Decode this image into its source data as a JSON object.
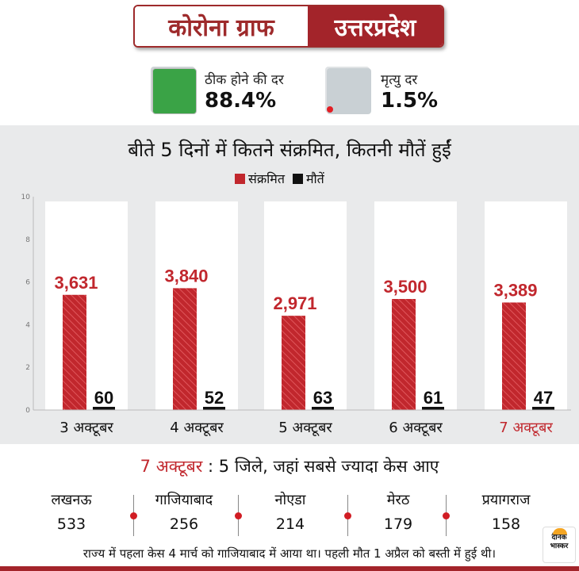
{
  "header": {
    "title_left": "कोरोना ग्राफ",
    "title_right": "उत्तरप्रदेश"
  },
  "stats": {
    "recovery": {
      "label": "ठीक होने की दर",
      "value": "88.4%",
      "color": "#3aa346"
    },
    "mortality": {
      "label": "मृत्यु दर",
      "value": "1.5%",
      "color": "#c9d0d4"
    }
  },
  "chart_data": {
    "type": "bar",
    "title": "बीते 5 दिनों में कितने संक्रमित, कितनी मौतें हुईं",
    "categories": [
      "3 अक्टूबर",
      "4 अक्टूबर",
      "5 अक्टूबर",
      "6 अक्टूबर",
      "7 अक्टूबर"
    ],
    "highlight_category": "7 अक्टूबर",
    "y_ticks": [
      "0",
      "2",
      "4",
      "6",
      "8",
      "10"
    ],
    "series": [
      {
        "name": "संक्रमित",
        "color": "#c1272d",
        "values": [
          3631,
          3840,
          2971,
          3500,
          3389
        ],
        "labels": [
          "3,631",
          "3,840",
          "2,971",
          "3,500",
          "3,389"
        ]
      },
      {
        "name": "मौतें",
        "color": "#111111",
        "values": [
          60,
          52,
          63,
          61,
          47
        ],
        "labels": [
          "60",
          "52",
          "63",
          "61",
          "47"
        ]
      }
    ],
    "legend": "top-center",
    "grid": false
  },
  "districts_section": {
    "date": "7 अक्टूबर",
    "separator": " : ",
    "title": "5 जिले, जहां सबसे ज्यादा केस आए",
    "items": [
      {
        "name": "लखनऊ",
        "count": "533"
      },
      {
        "name": "गाजियाबाद",
        "count": "256"
      },
      {
        "name": "नोएडा",
        "count": "214"
      },
      {
        "name": "मेरठ",
        "count": "179"
      },
      {
        "name": "प्रयागराज",
        "count": "158"
      }
    ]
  },
  "footnote": "राज्य में पहला केस 4 मार्च को गाजियाबाद में आया था। पहली मौत 1 अप्रैल को बस्ती में हुई थी।",
  "logo": {
    "line1": "दैनिक",
    "line2": "भास्कर"
  }
}
